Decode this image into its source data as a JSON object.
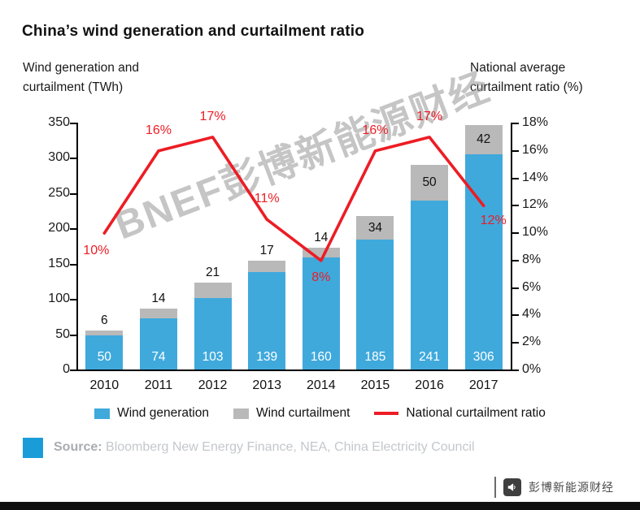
{
  "title": "China’s wind generation and curtailment ratio",
  "left_axis_title": "Wind generation and\ncurtailment (TWh)",
  "right_axis_title": "National average\ncurtailment ratio (%)",
  "watermark": "BNEF彭博新能源财经",
  "chart_data": {
    "type": "bar+line",
    "title": "China’s wind generation and curtailment ratio",
    "categories": [
      "2010",
      "2011",
      "2012",
      "2013",
      "2014",
      "2015",
      "2016",
      "2017"
    ],
    "series": [
      {
        "name": "Wind generation",
        "type": "bar",
        "axis": "left",
        "color": "#3fa9dc",
        "values": [
          50,
          74,
          103,
          139,
          160,
          185,
          241,
          306
        ]
      },
      {
        "name": "Wind curtailment",
        "type": "bar",
        "axis": "left",
        "stacked_on": "Wind generation",
        "color": "#b9b9b9",
        "values": [
          6,
          14,
          21,
          17,
          14,
          34,
          50,
          42
        ]
      },
      {
        "name": "National curtailment ratio",
        "type": "line",
        "axis": "right",
        "color": "#ed1c24",
        "unit": "%",
        "values": [
          10,
          16,
          17,
          11,
          8,
          16,
          17,
          12
        ],
        "label_positions": [
          "below-left",
          "above",
          "above",
          "above",
          "below",
          "above",
          "above",
          "below-right"
        ]
      }
    ],
    "left_axis": {
      "label": "Wind generation and curtailment (TWh)",
      "min": 0,
      "max": 350,
      "step": 50,
      "ticks": [
        "350",
        "300",
        "250",
        "200",
        "150",
        "100",
        "50",
        "0"
      ]
    },
    "right_axis": {
      "label": "National average curtailment ratio (%)",
      "min": 0,
      "max": 18,
      "step": 2,
      "ticks": [
        "18%",
        "16%",
        "14%",
        "12%",
        "10%",
        "8%",
        "6%",
        "4%",
        "2%",
        "0%"
      ]
    },
    "grid": false,
    "legend_position": "bottom"
  },
  "legend": [
    "Wind generation",
    "Wind curtailment",
    "National curtailment ratio"
  ],
  "source": {
    "label": "Source:",
    "text": "Bloomberg New Energy Finance, NEA, China Electricity Council",
    "icon_color": "#1a9cd9"
  },
  "footer": {
    "brand_text": "彭博新能源财经"
  }
}
